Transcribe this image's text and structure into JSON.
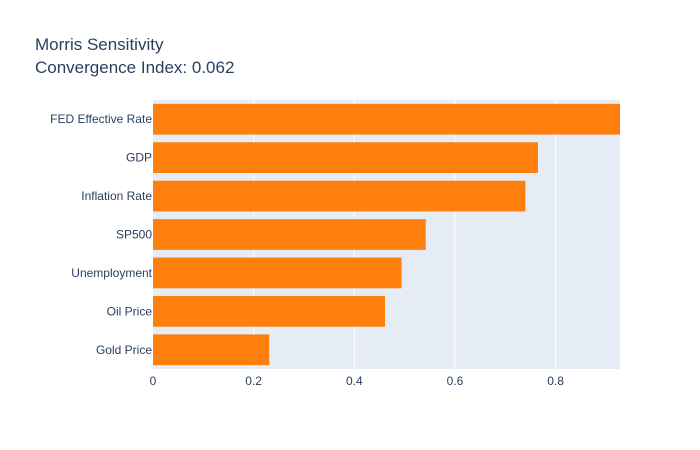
{
  "chart_data": {
    "type": "bar",
    "orientation": "horizontal",
    "title": "Morris Sensitivity",
    "subtitle": "Convergence Index: 0.062",
    "xlabel": "",
    "ylabel": "",
    "categories": [
      "FED Effective Rate",
      "GDP",
      "Inflation Rate",
      "SP500",
      "Unemployment",
      "Oil Price",
      "Gold Price"
    ],
    "values": [
      0.928,
      0.765,
      0.74,
      0.542,
      0.494,
      0.461,
      0.231
    ],
    "xlim": [
      0,
      0.928
    ],
    "xticks": [
      0,
      0.2,
      0.4,
      0.6,
      0.8
    ],
    "xtick_labels": [
      "0",
      "0.2",
      "0.4",
      "0.6",
      "0.8"
    ],
    "grid": true,
    "legend": "none",
    "bar_color": "#ff7f0e",
    "plot_background": "#e5ecf6",
    "grid_color": "#ffffff",
    "text_color": "#2a3f5f"
  }
}
